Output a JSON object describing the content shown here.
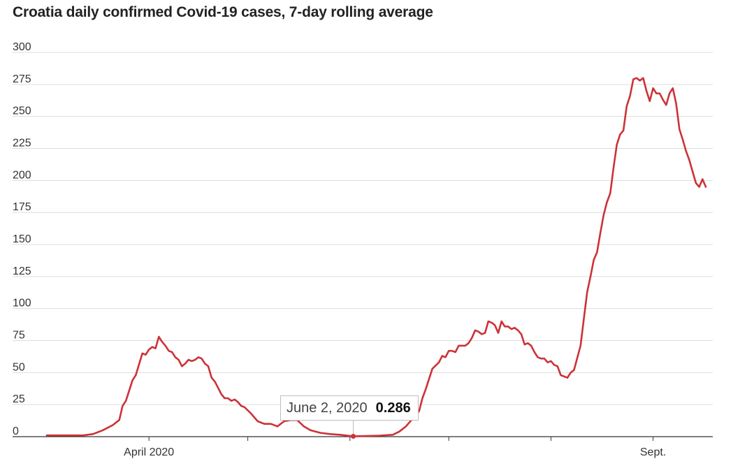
{
  "title": "Croatia daily confirmed Covid-19 cases, 7-day rolling average",
  "colors": {
    "line": "#cc3237",
    "grid": "#dddddd",
    "axis": "#333333"
  },
  "tooltip": {
    "date": "June 2, 2020",
    "value": "0.286"
  },
  "chart_data": {
    "type": "line",
    "title": "Croatia daily confirmed Covid-19 cases, 7-day rolling average",
    "xlabel": "",
    "ylabel": "",
    "ylim": [
      0,
      300
    ],
    "yticks": [
      0,
      25,
      50,
      75,
      100,
      125,
      150,
      175,
      200,
      225,
      250,
      275,
      300
    ],
    "xtick_labels": [
      {
        "date": "2020-04-01",
        "label": "April 2020"
      },
      {
        "date": "2020-09-01",
        "label": "Sept."
      }
    ],
    "xtick_marks": [
      "2020-04-01",
      "2020-05-01",
      "2020-06-01",
      "2020-07-01",
      "2020-08-01",
      "2020-09-01"
    ],
    "grid": true,
    "highlight": {
      "date": "2020-06-02",
      "value": 0.286
    },
    "series": [
      {
        "points": [
          [
            "2020-03-01",
            1
          ],
          [
            "2020-03-08",
            1
          ],
          [
            "2020-03-12",
            1
          ],
          [
            "2020-03-15",
            2
          ],
          [
            "2020-03-18",
            5
          ],
          [
            "2020-03-21",
            9
          ],
          [
            "2020-03-23",
            13
          ],
          [
            "2020-03-24",
            24
          ],
          [
            "2020-03-25",
            28
          ],
          [
            "2020-03-27",
            44
          ],
          [
            "2020-03-28",
            48
          ],
          [
            "2020-03-30",
            65
          ],
          [
            "2020-03-31",
            64
          ],
          [
            "2020-04-01",
            68
          ],
          [
            "2020-04-02",
            70
          ],
          [
            "2020-04-03",
            69
          ],
          [
            "2020-04-04",
            78
          ],
          [
            "2020-04-05",
            74
          ],
          [
            "2020-04-06",
            71
          ],
          [
            "2020-04-07",
            67
          ],
          [
            "2020-04-08",
            66
          ],
          [
            "2020-04-09",
            62
          ],
          [
            "2020-04-10",
            60
          ],
          [
            "2020-04-11",
            55
          ],
          [
            "2020-04-12",
            57
          ],
          [
            "2020-04-13",
            60
          ],
          [
            "2020-04-14",
            59
          ],
          [
            "2020-04-15",
            60
          ],
          [
            "2020-04-16",
            62
          ],
          [
            "2020-04-17",
            61
          ],
          [
            "2020-04-18",
            57
          ],
          [
            "2020-04-19",
            55
          ],
          [
            "2020-04-20",
            46
          ],
          [
            "2020-04-21",
            43
          ],
          [
            "2020-04-22",
            38
          ],
          [
            "2020-04-23",
            33
          ],
          [
            "2020-04-24",
            30
          ],
          [
            "2020-04-25",
            30
          ],
          [
            "2020-04-26",
            28
          ],
          [
            "2020-04-27",
            29
          ],
          [
            "2020-04-28",
            27
          ],
          [
            "2020-04-29",
            24
          ],
          [
            "2020-04-30",
            23
          ],
          [
            "2020-05-02",
            18
          ],
          [
            "2020-05-04",
            12
          ],
          [
            "2020-05-06",
            10
          ],
          [
            "2020-05-08",
            10
          ],
          [
            "2020-05-10",
            8
          ],
          [
            "2020-05-12",
            12
          ],
          [
            "2020-05-14",
            13
          ],
          [
            "2020-05-16",
            13
          ],
          [
            "2020-05-18",
            8
          ],
          [
            "2020-05-20",
            5
          ],
          [
            "2020-05-23",
            3
          ],
          [
            "2020-05-26",
            2
          ],
          [
            "2020-05-29",
            1.5
          ],
          [
            "2020-06-02",
            0.286
          ],
          [
            "2020-06-06",
            0.5
          ],
          [
            "2020-06-10",
            0.8
          ],
          [
            "2020-06-14",
            1.5
          ],
          [
            "2020-06-16",
            4
          ],
          [
            "2020-06-18",
            8
          ],
          [
            "2020-06-20",
            14
          ],
          [
            "2020-06-22",
            20
          ],
          [
            "2020-06-23",
            30
          ],
          [
            "2020-06-24",
            37
          ],
          [
            "2020-06-26",
            53
          ],
          [
            "2020-06-28",
            58
          ],
          [
            "2020-06-29",
            63
          ],
          [
            "2020-06-30",
            62
          ],
          [
            "2020-07-01",
            67
          ],
          [
            "2020-07-02",
            67
          ],
          [
            "2020-07-03",
            66
          ],
          [
            "2020-07-04",
            71
          ],
          [
            "2020-07-05",
            71
          ],
          [
            "2020-07-06",
            71
          ],
          [
            "2020-07-07",
            73
          ],
          [
            "2020-07-08",
            77
          ],
          [
            "2020-07-09",
            83
          ],
          [
            "2020-07-10",
            82
          ],
          [
            "2020-07-11",
            80
          ],
          [
            "2020-07-12",
            81
          ],
          [
            "2020-07-13",
            90
          ],
          [
            "2020-07-14",
            89
          ],
          [
            "2020-07-15",
            87
          ],
          [
            "2020-07-16",
            81
          ],
          [
            "2020-07-17",
            90
          ],
          [
            "2020-07-18",
            86
          ],
          [
            "2020-07-19",
            86
          ],
          [
            "2020-07-20",
            84
          ],
          [
            "2020-07-21",
            85
          ],
          [
            "2020-07-22",
            83
          ],
          [
            "2020-07-23",
            80
          ],
          [
            "2020-07-24",
            72
          ],
          [
            "2020-07-25",
            73
          ],
          [
            "2020-07-26",
            71
          ],
          [
            "2020-07-27",
            66
          ],
          [
            "2020-07-28",
            62
          ],
          [
            "2020-07-29",
            61
          ],
          [
            "2020-07-30",
            61
          ],
          [
            "2020-07-31",
            58
          ],
          [
            "2020-08-01",
            59
          ],
          [
            "2020-08-02",
            56
          ],
          [
            "2020-08-03",
            55
          ],
          [
            "2020-08-04",
            48
          ],
          [
            "2020-08-05",
            47
          ],
          [
            "2020-08-06",
            46
          ],
          [
            "2020-08-07",
            50
          ],
          [
            "2020-08-08",
            52
          ],
          [
            "2020-08-10",
            71
          ],
          [
            "2020-08-11",
            92
          ],
          [
            "2020-08-12",
            113
          ],
          [
            "2020-08-13",
            125
          ],
          [
            "2020-08-14",
            138
          ],
          [
            "2020-08-15",
            144
          ],
          [
            "2020-08-16",
            159
          ],
          [
            "2020-08-17",
            173
          ],
          [
            "2020-08-18",
            183
          ],
          [
            "2020-08-19",
            190
          ],
          [
            "2020-08-20",
            210
          ],
          [
            "2020-08-21",
            228
          ],
          [
            "2020-08-22",
            236
          ],
          [
            "2020-08-23",
            239
          ],
          [
            "2020-08-24",
            258
          ],
          [
            "2020-08-25",
            266
          ],
          [
            "2020-08-26",
            279
          ],
          [
            "2020-08-27",
            280
          ],
          [
            "2020-08-28",
            278
          ],
          [
            "2020-08-29",
            280
          ],
          [
            "2020-08-30",
            270
          ],
          [
            "2020-08-31",
            262
          ],
          [
            "2020-09-01",
            272
          ],
          [
            "2020-09-02",
            268
          ],
          [
            "2020-09-03",
            268
          ],
          [
            "2020-09-04",
            263
          ],
          [
            "2020-09-05",
            259
          ],
          [
            "2020-09-06",
            268
          ],
          [
            "2020-09-07",
            272
          ],
          [
            "2020-09-08",
            260
          ],
          [
            "2020-09-09",
            240
          ],
          [
            "2020-09-10",
            232
          ],
          [
            "2020-09-11",
            223
          ],
          [
            "2020-09-12",
            216
          ],
          [
            "2020-09-13",
            207
          ],
          [
            "2020-09-14",
            198
          ],
          [
            "2020-09-15",
            195
          ],
          [
            "2020-09-16",
            201
          ],
          [
            "2020-09-17",
            195
          ]
        ]
      }
    ]
  }
}
